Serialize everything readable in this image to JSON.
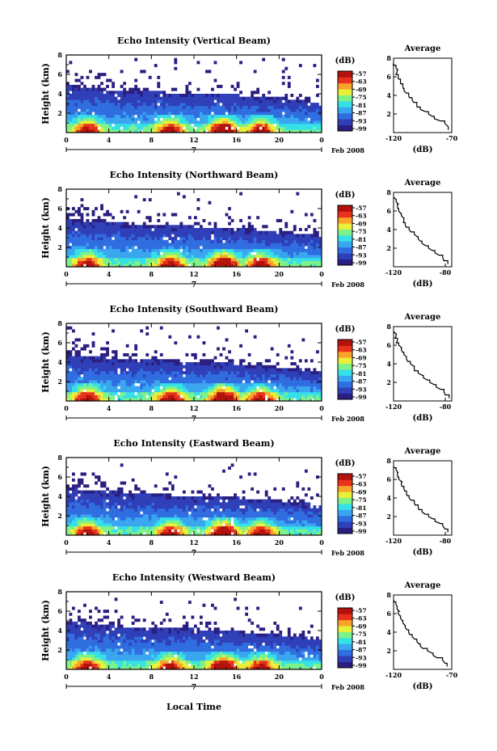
{
  "figure": {
    "xlabel": "Local Time",
    "date_label": "Feb 2008",
    "day_label": "7",
    "colorbar_unit": "(dB)",
    "colorbar_ticks": [
      "-57",
      "-63",
      "-69",
      "-75",
      "-81",
      "-87",
      "-93",
      "-99"
    ],
    "colormap": [
      "#2a1e80",
      "#2f3fb8",
      "#2f6de0",
      "#3aa6f0",
      "#35e0e8",
      "#7df28a",
      "#e8f03a",
      "#f9a32a",
      "#e8321c",
      "#b3120c"
    ],
    "time_ticks": [
      "0",
      "4",
      "8",
      "12",
      "16",
      "20",
      "0"
    ],
    "height_ticks": [
      "2",
      "4",
      "6",
      "8"
    ],
    "avg_title": "Average",
    "avg_xlabel": "(dB)"
  },
  "chart_data": [
    {
      "type": "heatmap",
      "title": "Echo Intensity (Vertical Beam)",
      "ylabel": "Height (km)",
      "x_range_hours": [
        0,
        24
      ],
      "ylim_km": [
        0,
        8
      ],
      "color_range_db": [
        -99,
        -57
      ],
      "echo_top_km": [
        4.9,
        4.6,
        4.4,
        4.2,
        4.2,
        4.0,
        4.0,
        3.9,
        3.8,
        3.6,
        3.4,
        3.1
      ],
      "convective_peaks_hours": [
        2.0,
        9.8,
        14.8,
        18.3
      ],
      "average_profile": {
        "title": "Average",
        "xlabel": "(dB)",
        "x_ticks": [
          "-120",
          "-70"
        ],
        "xlim": [
          -120,
          -70
        ],
        "y_ticks": [
          "2",
          "4",
          "6",
          "8"
        ],
        "ylim": [
          0,
          8
        ],
        "height_km": [
          0.3,
          1.0,
          1.5,
          2.0,
          2.5,
          3.0,
          3.5,
          4.0,
          4.5,
          5.0,
          5.5,
          6.0,
          6.5,
          7.0,
          7.5
        ],
        "db": [
          -73,
          -76,
          -85,
          -90,
          -97,
          -100,
          -104,
          -107,
          -111,
          -112,
          -114,
          -116,
          -117,
          -118,
          -120
        ]
      }
    },
    {
      "type": "heatmap",
      "title": "Echo Intensity (Northward Beam)",
      "ylabel": "Height (km)",
      "x_range_hours": [
        0,
        24
      ],
      "ylim_km": [
        0,
        8
      ],
      "color_range_db": [
        -99,
        -57
      ],
      "echo_top_km": [
        4.9,
        4.7,
        4.5,
        4.4,
        4.3,
        4.2,
        4.1,
        4.0,
        3.9,
        3.7,
        3.5,
        3.2
      ],
      "convective_peaks_hours": [
        2.0,
        9.8,
        14.8,
        18.3
      ],
      "average_profile": {
        "title": "Average",
        "xlabel": "(dB)",
        "x_ticks": [
          "-120",
          "-80"
        ],
        "xlim": [
          -120,
          -75
        ],
        "y_ticks": [
          "2",
          "4",
          "6",
          "8"
        ],
        "ylim": [
          0,
          8
        ],
        "height_km": [
          0.3,
          1.0,
          1.5,
          2.0,
          2.5,
          3.0,
          3.5,
          4.0,
          4.5,
          5.0,
          5.5,
          6.0,
          6.5,
          7.0,
          7.5
        ],
        "db": [
          -78,
          -82,
          -88,
          -93,
          -98,
          -101,
          -104,
          -108,
          -111,
          -112,
          -114,
          -116,
          -117,
          -118,
          -120
        ]
      }
    },
    {
      "type": "heatmap",
      "title": "Echo Intensity (Southward Beam)",
      "ylabel": "Height (km)",
      "x_range_hours": [
        0,
        24
      ],
      "ylim_km": [
        0,
        8
      ],
      "color_range_db": [
        -99,
        -57
      ],
      "echo_top_km": [
        4.8,
        4.6,
        4.4,
        4.3,
        4.2,
        4.1,
        4.0,
        3.9,
        3.7,
        3.5,
        3.3,
        3.0
      ],
      "convective_peaks_hours": [
        2.0,
        9.8,
        14.8,
        18.3
      ],
      "average_profile": {
        "title": "Average",
        "xlabel": "(dB)",
        "x_ticks": [
          "-120",
          "-80"
        ],
        "xlim": [
          -120,
          -75
        ],
        "y_ticks": [
          "2",
          "4",
          "6",
          "8"
        ],
        "ylim": [
          0,
          8
        ],
        "height_km": [
          0.3,
          1.0,
          1.5,
          2.0,
          2.5,
          3.0,
          3.5,
          4.0,
          4.5,
          5.0,
          5.5,
          6.0,
          6.5,
          7.0,
          7.5
        ],
        "db": [
          -77,
          -81,
          -87,
          -92,
          -97,
          -101,
          -104,
          -107,
          -110,
          -112,
          -114,
          -116,
          -117,
          -118,
          -120
        ]
      }
    },
    {
      "type": "heatmap",
      "title": "Echo Intensity (Eastward Beam)",
      "ylabel": "Height (km)",
      "x_range_hours": [
        0,
        24
      ],
      "ylim_km": [
        0,
        8
      ],
      "color_range_db": [
        -99,
        -57
      ],
      "echo_top_km": [
        4.9,
        4.6,
        4.5,
        4.3,
        4.2,
        4.1,
        4.0,
        3.9,
        3.8,
        3.6,
        3.4,
        3.1
      ],
      "convective_peaks_hours": [
        2.0,
        9.8,
        14.8,
        18.3
      ],
      "average_profile": {
        "title": "Average",
        "xlabel": "(dB)",
        "x_ticks": [
          "-120",
          "-80"
        ],
        "xlim": [
          -120,
          -75
        ],
        "y_ticks": [
          "2",
          "4",
          "6",
          "8"
        ],
        "ylim": [
          0,
          8
        ],
        "height_km": [
          0.3,
          1.0,
          1.5,
          2.0,
          2.5,
          3.0,
          3.5,
          4.0,
          4.5,
          5.0,
          5.5,
          6.0,
          6.5,
          7.0,
          7.5
        ],
        "db": [
          -78,
          -82,
          -88,
          -93,
          -98,
          -101,
          -104,
          -108,
          -110,
          -112,
          -114,
          -116,
          -117,
          -118,
          -120
        ]
      }
    },
    {
      "type": "heatmap",
      "title": "Echo Intensity (Westward Beam)",
      "ylabel": "Height (km)",
      "x_range_hours": [
        0,
        24
      ],
      "ylim_km": [
        0,
        8
      ],
      "color_range_db": [
        -99,
        -57
      ],
      "echo_top_km": [
        5.0,
        4.8,
        4.5,
        4.4,
        4.3,
        4.2,
        4.1,
        4.0,
        3.8,
        3.6,
        3.4,
        3.1
      ],
      "convective_peaks_hours": [
        2.0,
        9.8,
        14.8,
        18.3
      ],
      "average_profile": {
        "title": "Average",
        "xlabel": "(dB)",
        "x_ticks": [
          "-120",
          "-70"
        ],
        "xlim": [
          -120,
          -70
        ],
        "y_ticks": [
          "2",
          "4",
          "6",
          "8"
        ],
        "ylim": [
          0,
          8
        ],
        "height_km": [
          0.3,
          1.0,
          1.5,
          2.0,
          2.5,
          3.0,
          3.5,
          4.0,
          4.5,
          5.0,
          5.5,
          6.0,
          6.5,
          7.0,
          7.5
        ],
        "db": [
          -74,
          -78,
          -86,
          -91,
          -97,
          -100,
          -104,
          -107,
          -110,
          -112,
          -114,
          -116,
          -117,
          -118,
          -120
        ]
      }
    }
  ]
}
